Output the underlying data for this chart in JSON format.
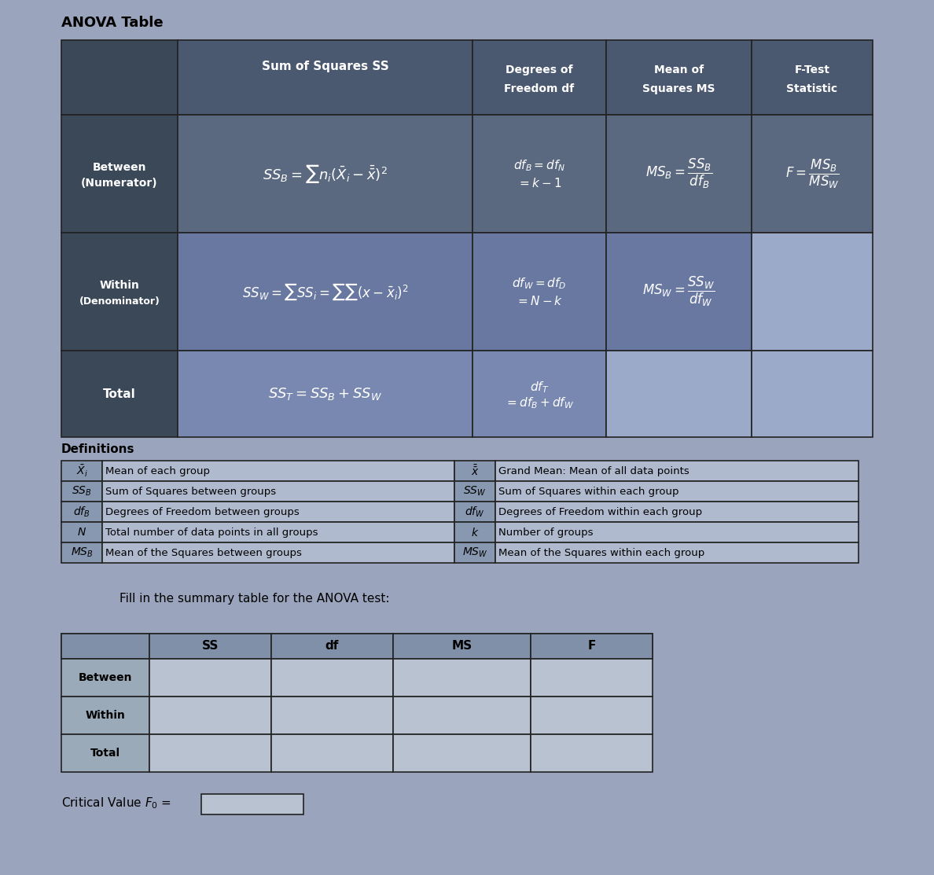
{
  "title": "ANOVA Table",
  "bg_color": "#9aa4bc",
  "header_bg": "#4a5870",
  "label_bg": "#3a4858",
  "between_bg": "#5a6880",
  "within_bg": "#6878a0",
  "total_bg": "#7888b0",
  "light_blue": "#8898b8",
  "lighter_blue": "#9aaac8",
  "def_sym_bg": "#8898b0",
  "def_desc_bg": "#b0bace",
  "fill_header_bg": "#8090a8",
  "fill_label_bg": "#9aaab8",
  "fill_cell_bg": "#b8c2d0",
  "white": "#ffffff",
  "black": "#000000",
  "def_left": [
    [
      "$\\bar{X}_i$",
      "Mean of each group"
    ],
    [
      "$SS_B$",
      "Sum of Squares between groups"
    ],
    [
      "$df_B$",
      "Degrees of Freedom between groups"
    ],
    [
      "$N$",
      "Total number of data points in all groups"
    ],
    [
      "$MS_B$",
      "Mean of the Squares between groups"
    ]
  ],
  "def_right": [
    [
      "$\\bar{\\bar{x}}$",
      "Grand Mean: Mean of all data points"
    ],
    [
      "$SS_W$",
      "Sum of Squares within each group"
    ],
    [
      "$df_W$",
      "Degrees of Freedom within each group"
    ],
    [
      "$k$",
      "Number of groups"
    ],
    [
      "$MS_W$",
      "Mean of the Squares within each group"
    ]
  ]
}
